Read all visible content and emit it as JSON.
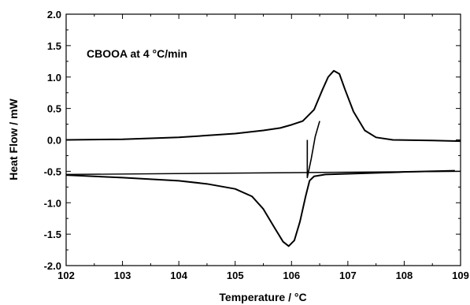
{
  "chart_data": {
    "type": "line",
    "annotation": "CBOOA at 4 °C/min",
    "xlabel": "Temperature  /  °C",
    "ylabel": "Heat Flow  /  mW",
    "xlim": [
      102,
      109
    ],
    "ylim": [
      -2.0,
      2.0
    ],
    "xticks": [
      "102",
      "103",
      "104",
      "105",
      "106",
      "107",
      "108",
      "109"
    ],
    "yticks": [
      "2.0",
      "1.5",
      "1.0",
      "0.5",
      "0.0",
      "-0.5",
      "-1.0",
      "-1.5",
      "-2.0"
    ],
    "grid": false,
    "legend": "none",
    "series": [
      {
        "points": [
          [
            102.0,
            0.0
          ],
          [
            103.0,
            0.01
          ],
          [
            104.0,
            0.04
          ],
          [
            104.5,
            0.07
          ],
          [
            105.0,
            0.1
          ],
          [
            105.5,
            0.15
          ],
          [
            105.8,
            0.19
          ],
          [
            106.0,
            0.24
          ],
          [
            106.2,
            0.3
          ],
          [
            106.4,
            0.48
          ],
          [
            106.55,
            0.8
          ],
          [
            106.65,
            1.0
          ],
          [
            106.75,
            1.1
          ],
          [
            106.85,
            1.05
          ],
          [
            106.95,
            0.8
          ],
          [
            107.1,
            0.45
          ],
          [
            107.3,
            0.15
          ],
          [
            107.5,
            0.04
          ],
          [
            107.8,
            0.0
          ],
          [
            108.5,
            -0.01
          ],
          [
            109.0,
            -0.02
          ]
        ]
      },
      {
        "points": [
          [
            102.0,
            -0.56
          ],
          [
            103.0,
            -0.6
          ],
          [
            104.0,
            -0.65
          ],
          [
            104.5,
            -0.7
          ],
          [
            105.0,
            -0.78
          ],
          [
            105.3,
            -0.9
          ],
          [
            105.5,
            -1.1
          ],
          [
            105.7,
            -1.4
          ],
          [
            105.85,
            -1.62
          ],
          [
            105.95,
            -1.69
          ],
          [
            106.05,
            -1.6
          ],
          [
            106.15,
            -1.3
          ],
          [
            106.25,
            -0.9
          ],
          [
            106.32,
            -0.65
          ],
          [
            106.4,
            -0.58
          ],
          [
            106.6,
            -0.55
          ],
          [
            107.0,
            -0.54
          ],
          [
            108.0,
            -0.51
          ],
          [
            108.9,
            -0.49
          ]
        ]
      },
      {
        "points": [
          [
            106.28,
            0.0
          ],
          [
            106.28,
            -0.6
          ],
          [
            106.35,
            -0.3
          ],
          [
            106.42,
            0.05
          ],
          [
            106.5,
            0.3
          ]
        ]
      },
      {
        "points": [
          [
            102.0,
            -0.55
          ],
          [
            109.0,
            -0.5
          ]
        ]
      }
    ]
  }
}
